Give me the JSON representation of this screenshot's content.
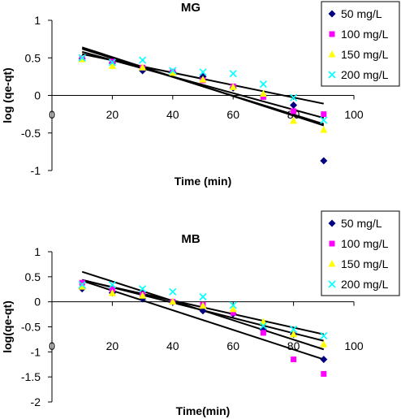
{
  "chart_data": [
    {
      "type": "scatter",
      "title": "MG",
      "xlabel": "Time (min)",
      "ylabel": "log (qe-qt)",
      "xlim": [
        0,
        100
      ],
      "ylim": [
        -1,
        1
      ],
      "x_ticks": [
        0,
        20,
        40,
        60,
        80,
        100
      ],
      "y_ticks": [
        -1,
        -0.5,
        0,
        0.5,
        1
      ],
      "x_tick_labels": [
        "0",
        "20",
        "40",
        "60",
        "80",
        "100"
      ],
      "y_tick_labels": [
        "-1",
        "-0.5",
        "0",
        "0.5",
        "1"
      ],
      "grid": false,
      "legend_position": "top-right",
      "x": [
        10,
        20,
        30,
        40,
        50,
        60,
        70,
        80,
        90
      ],
      "series": [
        {
          "name": "50 mg/L",
          "marker": "diamond",
          "color": "#000080",
          "values": [
            0.49,
            0.43,
            0.33,
            0.31,
            0.25,
            0.1,
            -0.01,
            -0.13,
            -0.87
          ],
          "fit": [
            0.64,
            -0.4
          ]
        },
        {
          "name": "100 mg/L",
          "marker": "square",
          "color": "#FF00FF",
          "values": [
            0.49,
            0.45,
            0.37,
            0.31,
            0.2,
            0.12,
            -0.02,
            -0.21,
            -0.25
          ],
          "fit": [
            0.58,
            -0.3
          ]
        },
        {
          "name": "150 mg/L",
          "marker": "triangle",
          "color": "#FFFF00",
          "values": [
            0.48,
            0.39,
            0.37,
            0.3,
            0.21,
            0.11,
            0.02,
            -0.34,
            -0.46
          ],
          "fit": [
            0.62,
            -0.38
          ]
        },
        {
          "name": "200 mg/L",
          "marker": "x",
          "color": "#00FFFF",
          "values": [
            0.5,
            0.44,
            0.47,
            0.33,
            0.31,
            0.29,
            0.15,
            -0.03,
            -0.33
          ],
          "fit": [
            0.55,
            -0.11
          ]
        }
      ]
    },
    {
      "type": "scatter",
      "title": "MB",
      "xlabel": "Time(min)",
      "ylabel": "log(qe-qt)",
      "xlim": [
        0,
        100
      ],
      "ylim": [
        -2,
        1
      ],
      "x_ticks": [
        0,
        20,
        40,
        60,
        80,
        100
      ],
      "y_ticks": [
        -2,
        -1.5,
        -1,
        -0.5,
        0,
        0.5,
        1
      ],
      "x_tick_labels": [
        "0",
        "20",
        "40",
        "60",
        "80",
        "100"
      ],
      "y_tick_labels": [
        "-2",
        "-1.5",
        "-1",
        "-0.5",
        "0",
        "0.5",
        "1"
      ],
      "grid": false,
      "legend_position": "top-right",
      "x": [
        10,
        20,
        30,
        40,
        50,
        60,
        70,
        80,
        90
      ],
      "series": [
        {
          "name": "50 mg/L",
          "marker": "diamond",
          "color": "#000080",
          "values": [
            0.26,
            0.18,
            0.06,
            0.0,
            -0.18,
            -0.24,
            -0.56,
            -0.65,
            -1.15
          ],
          "fit": [
            0.42,
            -1.15
          ]
        },
        {
          "name": "100 mg/L",
          "marker": "square",
          "color": "#FF00FF",
          "values": [
            0.38,
            0.25,
            0.15,
            0.0,
            -0.06,
            -0.22,
            -0.62,
            -1.15,
            -1.44
          ],
          "fit": [
            0.6,
            -0.95
          ]
        },
        {
          "name": "150 mg/L",
          "marker": "triangle",
          "color": "#FFFF00",
          "values": [
            0.3,
            0.17,
            0.12,
            0.0,
            -0.08,
            -0.15,
            -0.4,
            -0.65,
            -0.85
          ],
          "fit": [
            0.44,
            -0.78
          ]
        },
        {
          "name": "200 mg/L",
          "marker": "x",
          "color": "#00FFFF",
          "values": [
            0.34,
            0.34,
            0.26,
            0.2,
            0.1,
            -0.07,
            -0.48,
            -0.55,
            -0.68
          ],
          "fit": [
            0.43,
            -0.65
          ]
        }
      ]
    }
  ]
}
